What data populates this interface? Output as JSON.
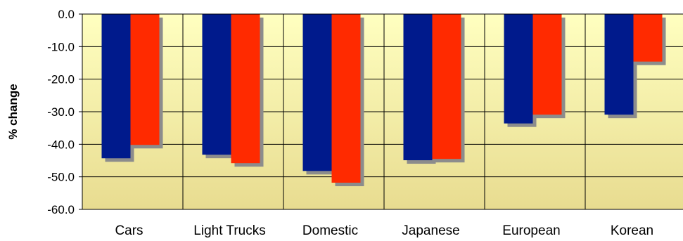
{
  "chart_data": {
    "type": "bar",
    "title": "",
    "xlabel": "",
    "ylabel": "% change",
    "ylim": [
      -60,
      0
    ],
    "yticks": [
      0,
      -10,
      -20,
      -30,
      -40,
      -50,
      -60
    ],
    "ytick_labels": [
      "0.0",
      "-10.0",
      "-20.0",
      "-30.0",
      "-40.0",
      "-50.0",
      "-60.0"
    ],
    "grid": true,
    "legend": "none",
    "categories": [
      "Cars",
      "Light Trucks",
      "Domestic",
      "Japanese",
      "European",
      "Korean"
    ],
    "series": [
      {
        "color": "#001a8c",
        "values": [
          -44.3,
          -43.2,
          -48.2,
          -44.9,
          -33.6,
          -30.9
        ]
      },
      {
        "color": "#ff2a00",
        "values": [
          -40.2,
          -45.8,
          -51.8,
          -44.5,
          -30.9,
          -14.6
        ]
      }
    ],
    "background_gradient": [
      "#ffffc0",
      "#e8dc90"
    ],
    "shadow_color": "#8c8c8c"
  }
}
